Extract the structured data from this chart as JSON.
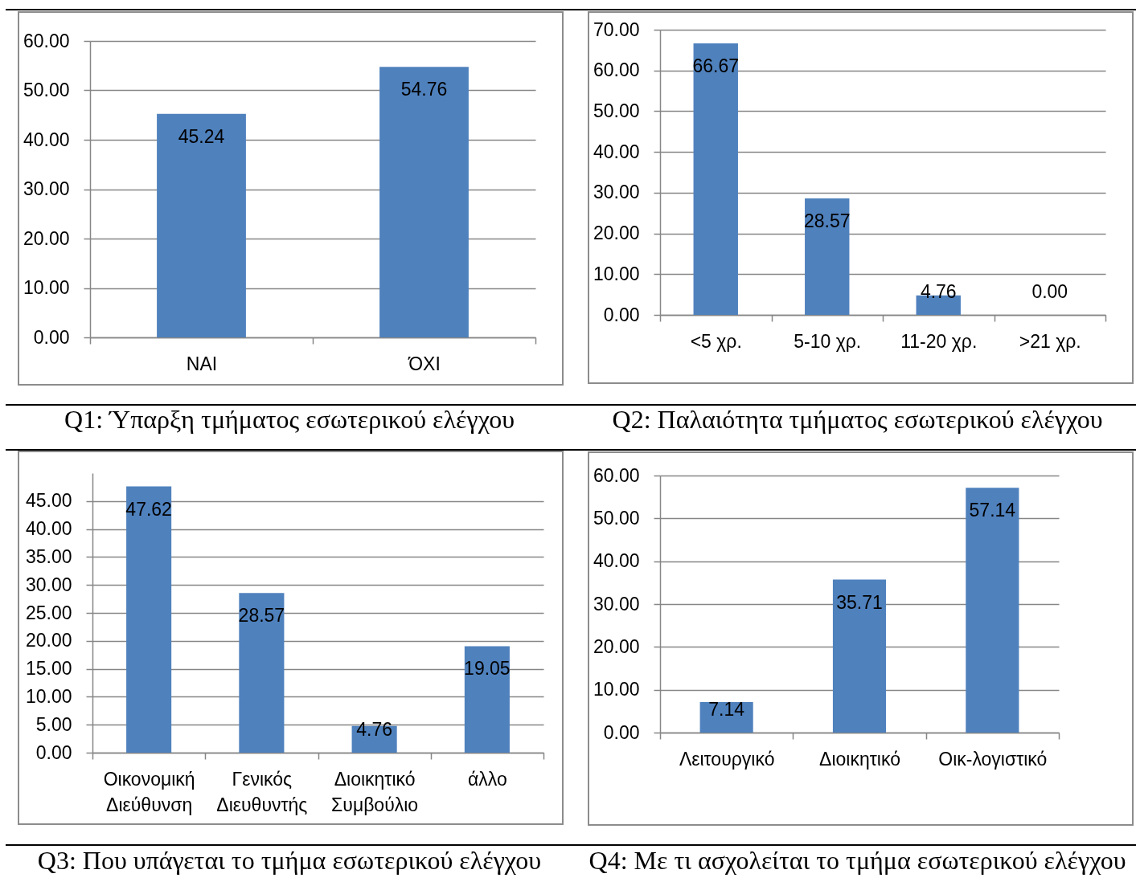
{
  "chart_data": [
    {
      "type": "bar",
      "title": "Q1: Ύπαρξη τμήματος εσωτερικού ελέγχου",
      "categories": [
        "ΝΑΙ",
        "ΌΧΙ"
      ],
      "values": [
        45.24,
        54.76
      ],
      "color": "#4f81bd",
      "value_labels": [
        "45.24",
        "54.76"
      ],
      "ylim": [
        0,
        60
      ],
      "yticks": [
        {
          "value": 0,
          "label": "0.00"
        },
        {
          "value": 10,
          "label": "10.00"
        },
        {
          "value": 20,
          "label": "20.00"
        },
        {
          "value": 30,
          "label": "30.00"
        },
        {
          "value": 40,
          "label": "40.00"
        },
        {
          "value": 50,
          "label": "50.00"
        },
        {
          "value": 60,
          "label": "60.00"
        }
      ],
      "grid": "y"
    },
    {
      "type": "bar",
      "title": "Q2: Παλαιότητα τμήματος εσωτερικού ελέγχου",
      "categories": [
        "<5 χρ.",
        "5-10 χρ.",
        "11-20 χρ.",
        ">21 χρ."
      ],
      "values": [
        66.67,
        28.57,
        4.76,
        0
      ],
      "color": "#4f81bd",
      "value_labels": [
        "66.67",
        "28.57",
        "4.76",
        "0.00"
      ],
      "ylim": [
        0,
        70
      ],
      "yticks": [
        {
          "value": 0,
          "label": "0.00"
        },
        {
          "value": 10,
          "label": "10.00"
        },
        {
          "value": 20,
          "label": "20.00"
        },
        {
          "value": 30,
          "label": "30.00"
        },
        {
          "value": 40,
          "label": "40.00"
        },
        {
          "value": 50,
          "label": "50.00"
        },
        {
          "value": 60,
          "label": "60.00"
        },
        {
          "value": 70,
          "label": "70.00"
        }
      ],
      "grid": "y"
    },
    {
      "type": "bar",
      "title": "Q3: Που υπάγεται το τμήμα εσωτερικού ελέγχου",
      "categories": [
        "Οικονομική Διεύθυνση",
        "Γενικός Διευθυντής",
        "Διοικητικό Συμβούλιο",
        "άλλο"
      ],
      "values": [
        47.62,
        28.57,
        4.76,
        19.05
      ],
      "color": "#4f81bd",
      "value_labels": [
        "47.62",
        "28.57",
        "4.76",
        "19.05"
      ],
      "ylim": [
        0,
        50
      ],
      "yticks": [
        {
          "value": 0,
          "label": "0.00"
        },
        {
          "value": 5,
          "label": "5.00"
        },
        {
          "value": 10,
          "label": "10.00"
        },
        {
          "value": 15,
          "label": "15.00"
        },
        {
          "value": 20,
          "label": "20.00"
        },
        {
          "value": 25,
          "label": "25.00"
        },
        {
          "value": 30,
          "label": "30.00"
        },
        {
          "value": 35,
          "label": "35.00"
        },
        {
          "value": 40,
          "label": "40.00"
        },
        {
          "value": 45,
          "label": "45.00"
        }
      ],
      "grid": "y"
    },
    {
      "type": "bar",
      "title": "Q4: Με τι ασχολείται το τμήμα εσωτερικού ελέγχου",
      "categories": [
        "Λειτουργικό",
        "Διοικητικό",
        "Οικ-λογιστικό"
      ],
      "values": [
        7.14,
        35.71,
        57.14
      ],
      "color": "#4f81bd",
      "value_labels": [
        "7.14",
        "35.71",
        "57.14"
      ],
      "ylim": [
        0,
        60
      ],
      "yticks": [
        {
          "value": 0,
          "label": "0.00"
        },
        {
          "value": 10,
          "label": "10.00"
        },
        {
          "value": 20,
          "label": "20.00"
        },
        {
          "value": 30,
          "label": "30.00"
        },
        {
          "value": 40,
          "label": "40.00"
        },
        {
          "value": 50,
          "label": "50.00"
        },
        {
          "value": 60,
          "label": "60.00"
        }
      ],
      "grid": "y"
    }
  ]
}
